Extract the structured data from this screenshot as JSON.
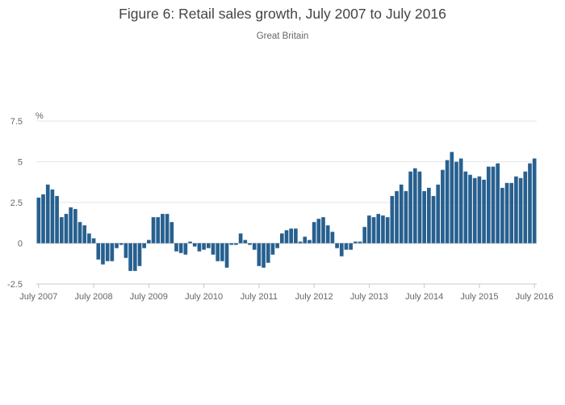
{
  "chart_data": {
    "type": "bar",
    "title": "Figure 6: Retail sales growth, July 2007 to July 2016",
    "subtitle": "Great Britain",
    "ylabel": "%",
    "xlabel": "",
    "ylim": [
      -2.5,
      7.5
    ],
    "yticks": [
      {
        "value": 7.5,
        "label": "7.5"
      },
      {
        "value": 5,
        "label": "5"
      },
      {
        "value": 2.5,
        "label": "2.5"
      },
      {
        "value": 0,
        "label": "0"
      },
      {
        "value": -2.5,
        "label": "-2.5"
      }
    ],
    "xticks": [
      {
        "index": 0,
        "label": "July 2007"
      },
      {
        "index": 12,
        "label": "July 2008"
      },
      {
        "index": 24,
        "label": "July 2009"
      },
      {
        "index": 36,
        "label": "July 2010"
      },
      {
        "index": 48,
        "label": "July 2011"
      },
      {
        "index": 60,
        "label": "July 2012"
      },
      {
        "index": 72,
        "label": "July 2013"
      },
      {
        "index": 84,
        "label": "July 2014"
      },
      {
        "index": 96,
        "label": "July 2015"
      },
      {
        "index": 108,
        "label": "July 2016"
      }
    ],
    "color": "#27608f",
    "grid": true,
    "categories": [
      "Jul 2007",
      "Aug 2007",
      "Sep 2007",
      "Oct 2007",
      "Nov 2007",
      "Dec 2007",
      "Jan 2008",
      "Feb 2008",
      "Mar 2008",
      "Apr 2008",
      "May 2008",
      "Jun 2008",
      "Jul 2008",
      "Aug 2008",
      "Sep 2008",
      "Oct 2008",
      "Nov 2008",
      "Dec 2008",
      "Jan 2009",
      "Feb 2009",
      "Mar 2009",
      "Apr 2009",
      "May 2009",
      "Jun 2009",
      "Jul 2009",
      "Aug 2009",
      "Sep 2009",
      "Oct 2009",
      "Nov 2009",
      "Dec 2009",
      "Jan 2010",
      "Feb 2010",
      "Mar 2010",
      "Apr 2010",
      "May 2010",
      "Jun 2010",
      "Jul 2010",
      "Aug 2010",
      "Sep 2010",
      "Oct 2010",
      "Nov 2010",
      "Dec 2010",
      "Jan 2011",
      "Feb 2011",
      "Mar 2011",
      "Apr 2011",
      "May 2011",
      "Jun 2011",
      "Jul 2011",
      "Aug 2011",
      "Sep 2011",
      "Oct 2011",
      "Nov 2011",
      "Dec 2011",
      "Jan 2012",
      "Feb 2012",
      "Mar 2012",
      "Apr 2012",
      "May 2012",
      "Jun 2012",
      "Jul 2012",
      "Aug 2012",
      "Sep 2012",
      "Oct 2012",
      "Nov 2012",
      "Dec 2012",
      "Jan 2013",
      "Feb 2013",
      "Mar 2013",
      "Apr 2013",
      "May 2013",
      "Jun 2013",
      "Jul 2013",
      "Aug 2013",
      "Sep 2013",
      "Oct 2013",
      "Nov 2013",
      "Dec 2013",
      "Jan 2014",
      "Feb 2014",
      "Mar 2014",
      "Apr 2014",
      "May 2014",
      "Jun 2014",
      "Jul 2014",
      "Aug 2014",
      "Sep 2014",
      "Oct 2014",
      "Nov 2014",
      "Dec 2014",
      "Jan 2015",
      "Feb 2015",
      "Mar 2015",
      "Apr 2015",
      "May 2015",
      "Jun 2015",
      "Jul 2015",
      "Aug 2015",
      "Sep 2015",
      "Oct 2015",
      "Nov 2015",
      "Dec 2015",
      "Jan 2016",
      "Feb 2016",
      "Mar 2016",
      "Apr 2016",
      "May 2016",
      "Jun 2016",
      "Jul 2016"
    ],
    "values": [
      2.8,
      3.0,
      3.6,
      3.3,
      2.9,
      1.6,
      1.8,
      2.2,
      2.1,
      1.3,
      1.1,
      0.6,
      0.3,
      -1.0,
      -1.3,
      -1.1,
      -1.1,
      -0.3,
      -0.1,
      -0.9,
      -1.7,
      -1.7,
      -1.4,
      -0.3,
      0.2,
      1.6,
      1.6,
      1.8,
      1.8,
      1.3,
      -0.5,
      -0.6,
      -0.7,
      0.1,
      -0.2,
      -0.5,
      -0.4,
      -0.3,
      -0.7,
      -1.1,
      -1.1,
      -1.5,
      -0.1,
      -0.1,
      0.6,
      0.2,
      -0.1,
      -0.4,
      -1.4,
      -1.5,
      -1.2,
      -0.7,
      -0.3,
      0.6,
      0.8,
      0.9,
      0.9,
      0.1,
      0.4,
      0.2,
      1.3,
      1.5,
      1.6,
      1.1,
      0.7,
      -0.3,
      -0.8,
      -0.4,
      -0.4,
      0.1,
      0.1,
      1.0,
      1.7,
      1.6,
      1.8,
      1.7,
      1.6,
      2.9,
      3.2,
      3.6,
      3.2,
      4.4,
      4.6,
      4.4,
      3.2,
      3.4,
      2.9,
      3.6,
      4.5,
      5.1,
      5.6,
      5.0,
      5.2,
      4.4,
      4.2,
      4.0,
      4.1,
      3.9,
      4.7,
      4.7,
      4.9,
      3.4,
      3.7,
      3.7,
      4.1,
      4.0,
      4.4,
      4.9,
      5.2
    ]
  }
}
